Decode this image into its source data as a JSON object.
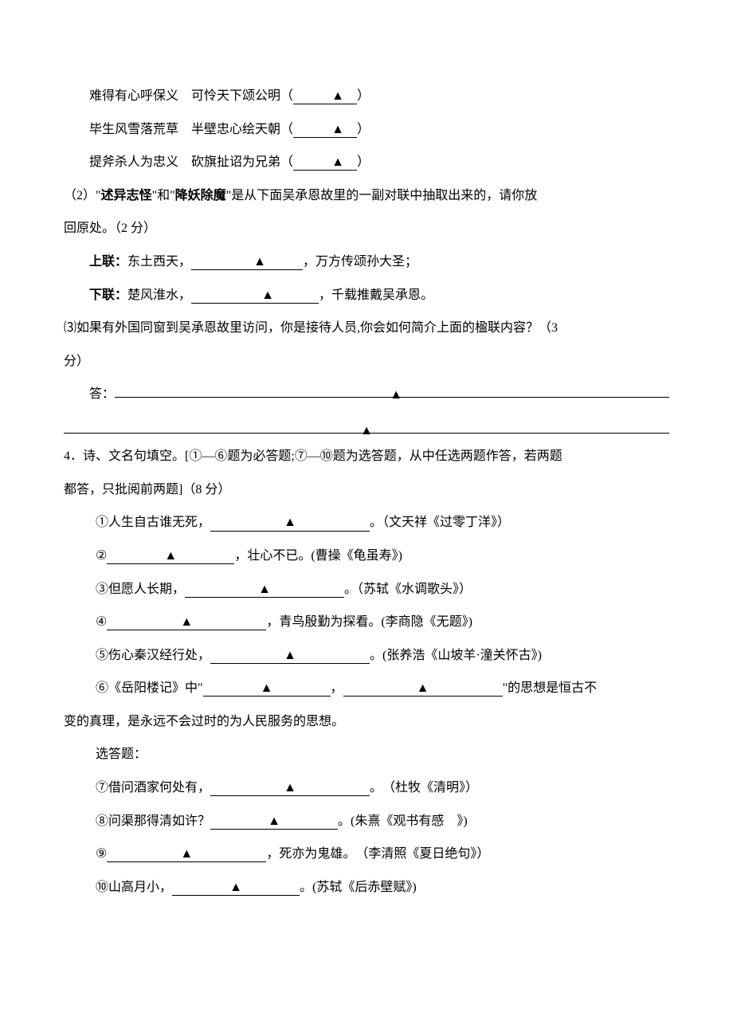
{
  "triangle": "▲",
  "lines": {
    "l1": "难得有心呼保义　可怜天下颂公明（",
    "l1_end": "）",
    "l2": "毕生风雪落荒草　半壁忠心绘天朝（",
    "l2_end": "）",
    "l3": "提斧杀人为忠义　砍旗扯诏为兄弟（",
    "l3_end": "）"
  },
  "q2": {
    "intro_a": "（2）\"",
    "bold1": "述异志怪",
    "mid1": "\"和\"",
    "bold2": "降妖除魔",
    "intro_b": "\"是从下面吴承恩故里的一副对联中抽取出来的，请你放",
    "intro_c": "回原处。（2 分）",
    "up_label": "上联：",
    "up_text_a": "东土西天，",
    "up_text_b": "，万方传颂孙大圣；",
    "down_label": "下联：",
    "down_text_a": "楚风淮水，",
    "down_text_b": "，千载推戴吴承恩。"
  },
  "q3": {
    "line_a": "⑶如果有外国同窗到吴承恩故里访问，你是接待人员,你会如何简介上面的楹联内容？（3",
    "line_b": "分）",
    "ans_label": "答："
  },
  "q4": {
    "head_a": "4．诗、文名句填空。[①—⑥题为必答题;⑦—⑩题为选答题，从中任选两题作答，若两题",
    "head_b": "都答，只批阅前两题]（8 分）",
    "i1_a": "①人生自古谁无死，",
    "i1_b": "。（文天祥《过零丁洋》）",
    "i2_a": "②",
    "i2_b": "，壮心不已。(曹操《龟虽寿》)",
    "i3_a": "③但愿人长期，",
    "i3_b": "。（苏轼《水调歌头》）",
    "i4_a": "④",
    "i4_b": "，青鸟殷勤为探看。(李商隐《无题》)",
    "i5_a": "⑤伤心秦汉经行处，",
    "i5_b": "。(张养浩《山坡羊·潼关怀古》)",
    "i6_a": "⑥《岳阳楼记》中\"",
    "i6_b": "，",
    "i6_c": "\"的思想是恒古不",
    "i6_d": "变的真理，是永远不会过时的为人民服务的思想。",
    "opt_label": "选答题：",
    "i7_a": "⑦借问酒家何处有，",
    "i7_b": "。　（杜牧《清明》）",
    "i8_a": "⑧问渠那得清如许？",
    "i8_b": "。(朱熹《观书有感　》)",
    "i9_a": "⑨",
    "i9_b": "，死亦为鬼雄。　（李清照《夏日绝句》）",
    "i10_a": "⑩山高月小，",
    "i10_b": "。(苏轼《后赤壁赋》)"
  }
}
